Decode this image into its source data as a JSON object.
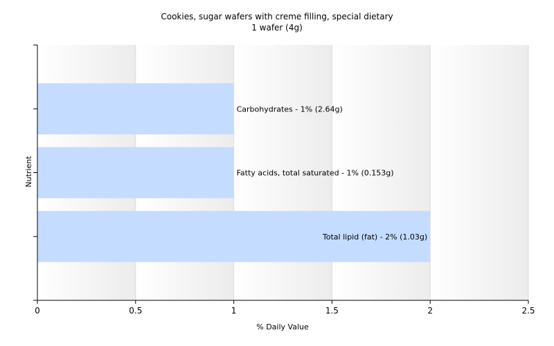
{
  "chart_data": {
    "type": "bar",
    "orientation": "horizontal",
    "title": "Cookies, sugar wafers with creme filling, special dietary",
    "subtitle": "1 wafer (4g)",
    "xlabel": "% Daily Value",
    "ylabel": "Nutrient",
    "xlim": [
      0,
      2.5
    ],
    "xticks": [
      "0",
      "0.5",
      "1",
      "1.5",
      "2",
      "2.5"
    ],
    "grid": true,
    "bar_color": "#c4dcff",
    "categories": [
      "Carbohydrates",
      "Fatty acids, total saturated",
      "Total lipid (fat)"
    ],
    "values": [
      1,
      1,
      2
    ],
    "labels": [
      "Carbohydrates - 1% (2.64g)",
      "Fatty acids, total saturated - 1% (0.153g)",
      "Total lipid (fat) - 2% (1.03g)"
    ]
  }
}
